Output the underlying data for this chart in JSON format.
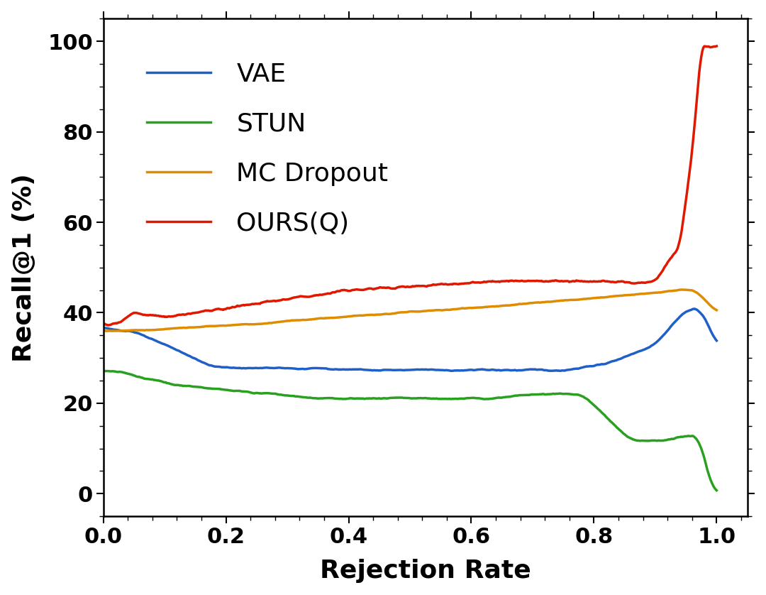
{
  "title": "",
  "xlabel": "Rejection Rate",
  "ylabel": "Recall@1 (%)",
  "xlim": [
    0.0,
    1.05
  ],
  "ylim": [
    -5,
    105
  ],
  "yticks": [
    0,
    20,
    40,
    60,
    80,
    100
  ],
  "xticks": [
    0.0,
    0.2,
    0.4,
    0.6,
    0.8,
    1.0
  ],
  "background_color": "#ffffff",
  "legend_labels": [
    "VAE",
    "STUN",
    "MC Dropout",
    "OURS(Q)"
  ],
  "line_colors": [
    "#1f5fc8",
    "#29a020",
    "#e08c00",
    "#e01800"
  ],
  "line_width": 2.5,
  "figsize": [
    10.8,
    8.38
  ],
  "dpi": 100,
  "tick_fontsize": 22,
  "label_fontsize": 26,
  "legend_fontsize": 26
}
